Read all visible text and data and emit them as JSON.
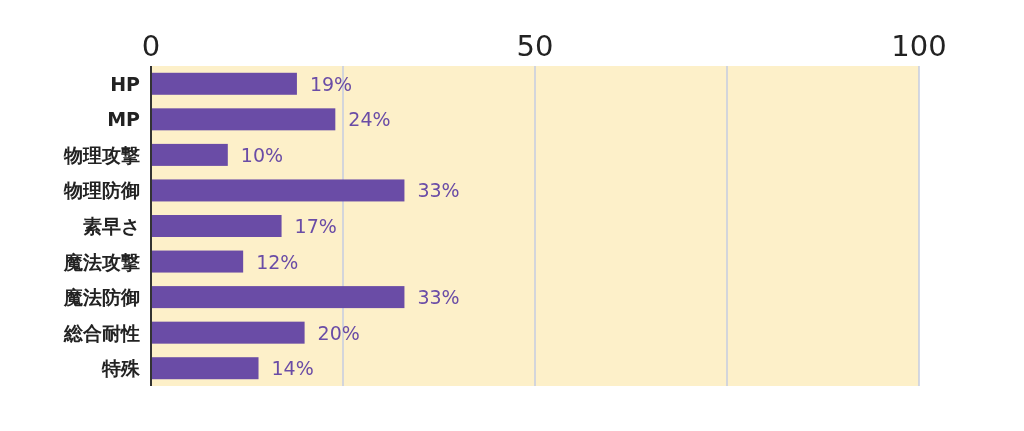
{
  "chart_data": {
    "type": "bar",
    "orientation": "horizontal",
    "categories": [
      "HP",
      "MP",
      "物理攻撃",
      "物理防御",
      "素早さ",
      "魔法攻撃",
      "魔法防御",
      "総合耐性",
      "特殊"
    ],
    "values": [
      19,
      24,
      10,
      33,
      17,
      12,
      33,
      20,
      14
    ],
    "value_labels": [
      "19%",
      "24%",
      "10%",
      "33%",
      "17%",
      "12%",
      "33%",
      "20%",
      "14%"
    ],
    "color": "#6a4ca6",
    "xlim": [
      0,
      100
    ],
    "xticks": [
      0,
      {
        "value": 25,
        "label": null
      },
      50,
      {
        "value": 75,
        "label": null
      },
      100
    ],
    "grid": "x"
  }
}
